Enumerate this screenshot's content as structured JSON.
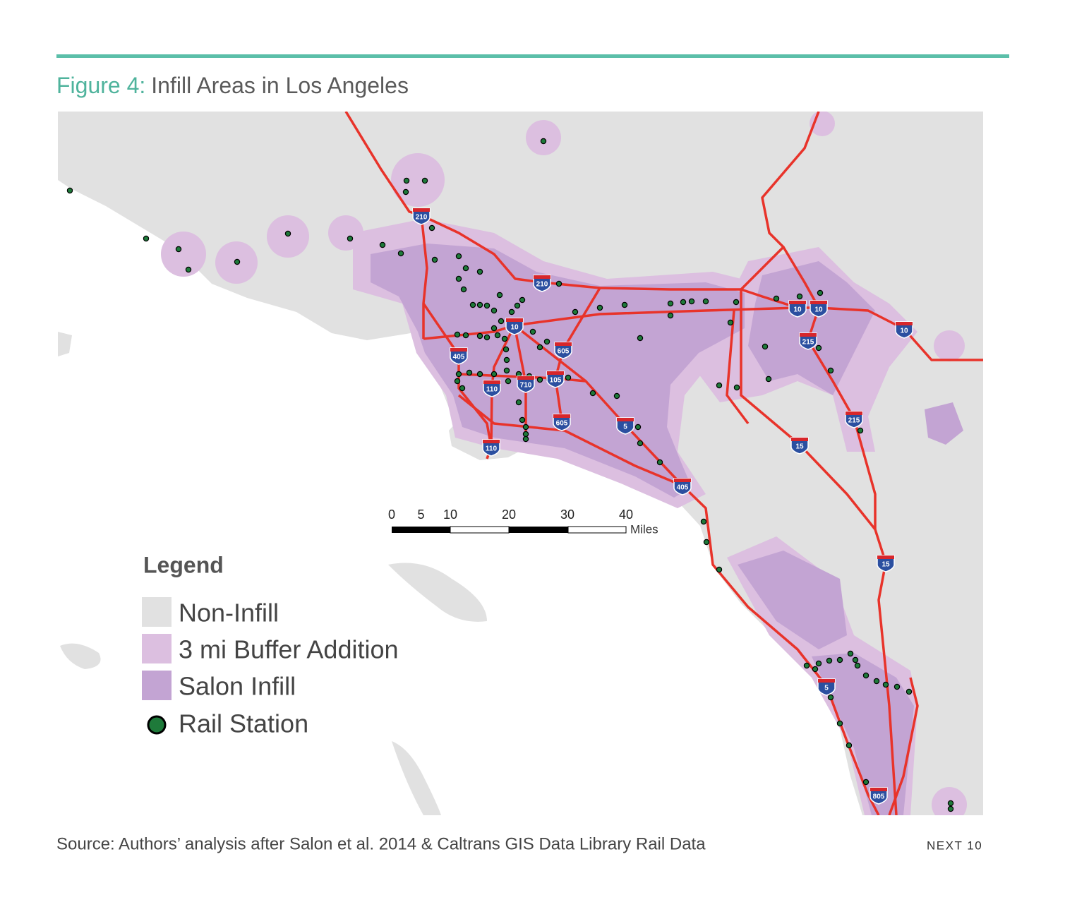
{
  "header": {
    "figure_label": "Figure 4:",
    "title": "Infill Areas in Los Angeles"
  },
  "map": {
    "scale_bar": {
      "ticks": [
        0,
        5,
        10,
        20,
        30,
        40
      ],
      "unit": "Miles"
    },
    "highway_shields": [
      "210",
      "210",
      "10",
      "405",
      "605",
      "110",
      "710",
      "105",
      "605",
      "5",
      "110",
      "405",
      "10",
      "10",
      "215",
      "10",
      "215",
      "15",
      "15",
      "5",
      "805"
    ],
    "legend": {
      "title": "Legend",
      "items": [
        "Non-Infill",
        "3 mi Buffer Addition",
        "Salon Infill",
        "Rail Station"
      ]
    }
  },
  "footer": {
    "source": "Source: Authors’ analysis after Salon et al. 2014 & Caltrans GIS Data Library Rail Data",
    "logo": "NEXT 10"
  }
}
